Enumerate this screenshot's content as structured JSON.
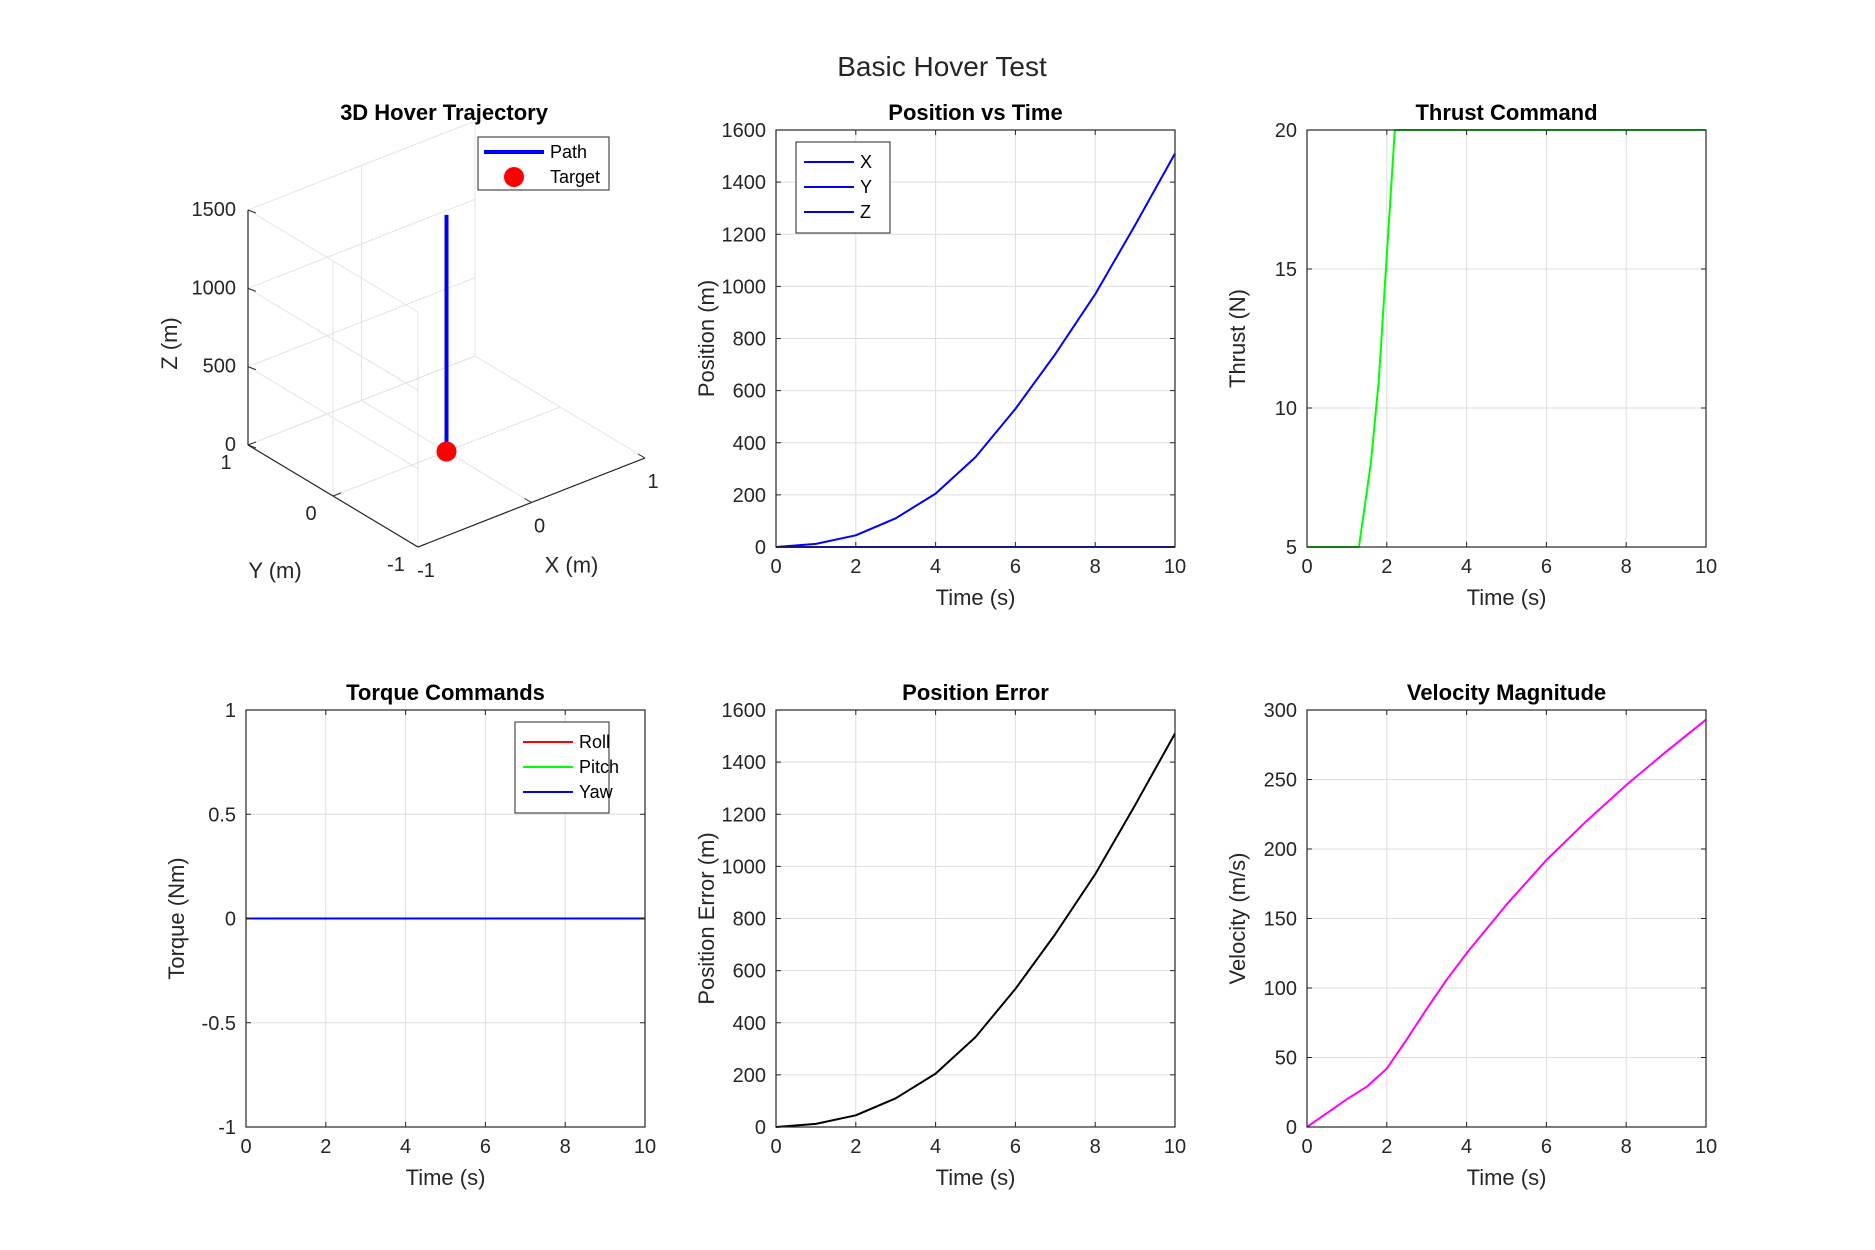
{
  "figure": {
    "suptitle": "Basic Hover Test"
  },
  "chart_data": [
    {
      "id": "traj3d",
      "type": "line3d",
      "title": "3D Hover Trajectory",
      "xlabel": "X (m)",
      "ylabel": "Y (m)",
      "zlabel": "Z (m)",
      "xlim": [
        -1,
        1
      ],
      "ylim": [
        -1,
        1
      ],
      "zlim": [
        0,
        1500
      ],
      "xticks": [
        -1,
        0,
        1
      ],
      "yticks": [
        -1,
        0,
        1
      ],
      "zticks": [
        0,
        500,
        1000,
        1500
      ],
      "grid": true,
      "legend_position": "top-right",
      "series": [
        {
          "name": "Path",
          "color": "#0000ff",
          "points": [
            [
              0,
              0,
              0
            ],
            [
              0,
              0,
              1510
            ]
          ]
        },
        {
          "name": "Target",
          "color": "#ff0000",
          "marker": "circle",
          "points": [
            [
              0,
              0,
              0
            ]
          ]
        }
      ]
    },
    {
      "id": "pos",
      "type": "line",
      "title": "Position vs Time",
      "xlabel": "Time (s)",
      "ylabel": "Position (m)",
      "xlim": [
        0,
        10
      ],
      "ylim": [
        0,
        1600
      ],
      "xticks": [
        0,
        2,
        4,
        6,
        8,
        10
      ],
      "yticks": [
        0,
        200,
        400,
        600,
        800,
        1000,
        1200,
        1400,
        1600
      ],
      "grid": true,
      "legend_position": "top-left",
      "x": [
        0,
        1,
        2,
        3,
        4,
        5,
        6,
        7,
        8,
        9,
        10
      ],
      "series": [
        {
          "name": "X",
          "color": "#0000ff",
          "values": [
            0,
            0,
            0,
            0,
            0,
            0,
            0,
            0,
            0,
            0,
            0
          ]
        },
        {
          "name": "Y",
          "color": "#0000ff",
          "values": [
            0,
            0,
            0,
            0,
            0,
            0,
            0,
            0,
            0,
            0,
            0
          ]
        },
        {
          "name": "Z",
          "color": "#0000ff",
          "values": [
            0,
            12,
            45,
            110,
            205,
            345,
            530,
            740,
            970,
            1235,
            1510
          ]
        }
      ]
    },
    {
      "id": "thrust",
      "type": "line",
      "title": "Thrust Command",
      "xlabel": "Time (s)",
      "ylabel": "Thrust (N)",
      "xlim": [
        0,
        10
      ],
      "ylim": [
        5,
        20
      ],
      "xticks": [
        0,
        2,
        4,
        6,
        8,
        10
      ],
      "yticks": [
        5,
        10,
        15,
        20
      ],
      "grid": true,
      "x": [
        0,
        1.3,
        1.6,
        1.8,
        2.0,
        2.2,
        10
      ],
      "series": [
        {
          "color": "#00ff00",
          "values": [
            5,
            5,
            8,
            11,
            15.5,
            20,
            20
          ]
        }
      ]
    },
    {
      "id": "torque",
      "type": "line",
      "title": "Torque Commands",
      "xlabel": "Time (s)",
      "ylabel": "Torque (Nm)",
      "xlim": [
        0,
        10
      ],
      "ylim": [
        -1,
        1
      ],
      "xticks": [
        0,
        2,
        4,
        6,
        8,
        10
      ],
      "yticks": [
        -1,
        -0.5,
        0,
        0.5,
        1
      ],
      "grid": true,
      "legend_position": "top-right",
      "x": [
        0,
        10
      ],
      "series": [
        {
          "name": "Roll",
          "color": "#ff0000",
          "values": [
            0,
            0
          ]
        },
        {
          "name": "Pitch",
          "color": "#00ff00",
          "values": [
            0,
            0
          ]
        },
        {
          "name": "Yaw",
          "color": "#0000ff",
          "values": [
            0,
            0
          ]
        }
      ]
    },
    {
      "id": "perr",
      "type": "line",
      "title": "Position Error",
      "xlabel": "Time (s)",
      "ylabel": "Position Error (m)",
      "xlim": [
        0,
        10
      ],
      "ylim": [
        0,
        1600
      ],
      "xticks": [
        0,
        2,
        4,
        6,
        8,
        10
      ],
      "yticks": [
        0,
        200,
        400,
        600,
        800,
        1000,
        1200,
        1400,
        1600
      ],
      "grid": true,
      "x": [
        0,
        1,
        2,
        3,
        4,
        5,
        6,
        7,
        8,
        9,
        10
      ],
      "series": [
        {
          "color": "#000000",
          "values": [
            0,
            12,
            45,
            110,
            205,
            345,
            530,
            740,
            970,
            1235,
            1510
          ]
        }
      ]
    },
    {
      "id": "vel",
      "type": "line",
      "title": "Velocity Magnitude",
      "xlabel": "Time (s)",
      "ylabel": "Velocity (m/s)",
      "xlim": [
        0,
        10
      ],
      "ylim": [
        0,
        300
      ],
      "xticks": [
        0,
        2,
        4,
        6,
        8,
        10
      ],
      "yticks": [
        0,
        50,
        100,
        150,
        200,
        250,
        300
      ],
      "grid": true,
      "x": [
        0,
        0.5,
        1,
        1.5,
        2,
        2.5,
        3,
        3.5,
        4,
        5,
        6,
        7,
        8,
        9,
        10
      ],
      "series": [
        {
          "color": "#ff00ff",
          "values": [
            0,
            10,
            20,
            29,
            42,
            63,
            85,
            106,
            125,
            160,
            192,
            220,
            246,
            270,
            293
          ]
        }
      ]
    }
  ]
}
